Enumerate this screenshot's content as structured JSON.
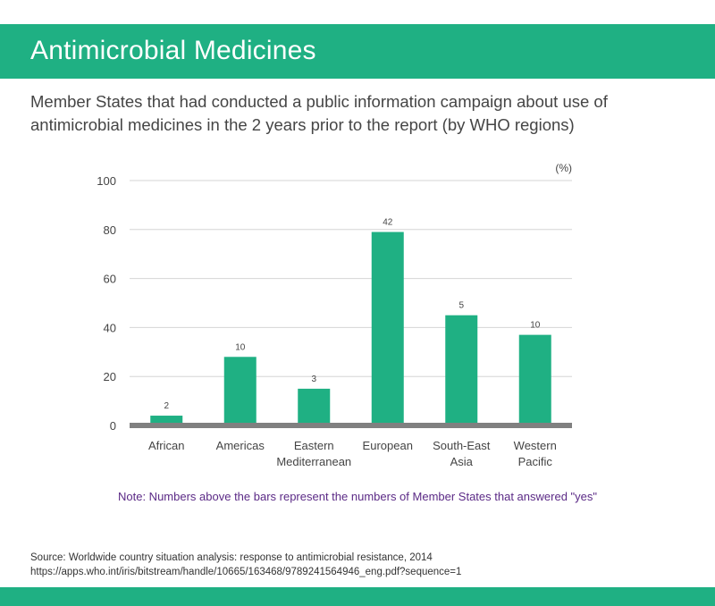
{
  "header": {
    "title": "Antimicrobial Medicines"
  },
  "subtitle": "Member States that had conducted a public information campaign about use of antimicrobial medicines in the 2 years prior to the report (by WHO regions)",
  "chart_data": {
    "type": "bar",
    "categories": [
      [
        "African"
      ],
      [
        "Americas"
      ],
      [
        "Eastern",
        "Mediterranean"
      ],
      [
        "European"
      ],
      [
        "South-East",
        "Asia"
      ],
      [
        "Western",
        "Pacific"
      ]
    ],
    "values": [
      4,
      28,
      15,
      79,
      45,
      37
    ],
    "data_labels": [
      "2",
      "10",
      "3",
      "42",
      "5",
      "10"
    ],
    "unit_label": "(%)",
    "ylim": [
      0,
      100
    ],
    "yticks": [
      0,
      20,
      40,
      60,
      80,
      100
    ],
    "grid": true,
    "bar_color": "#1fb083",
    "baseline_color": "#808080"
  },
  "note": "Note: Numbers above the bars represent the numbers of Member States that answered \"yes\"",
  "source": {
    "line1": "Source: Worldwide country situation analysis: response to antimicrobial resistance, 2014",
    "line2": "https://apps.who.int/iris/bitstream/handle/10665/163468/9789241564946_eng.pdf?sequence=1"
  },
  "colors": {
    "accent": "#1fb083",
    "note": "#5b2a86"
  }
}
